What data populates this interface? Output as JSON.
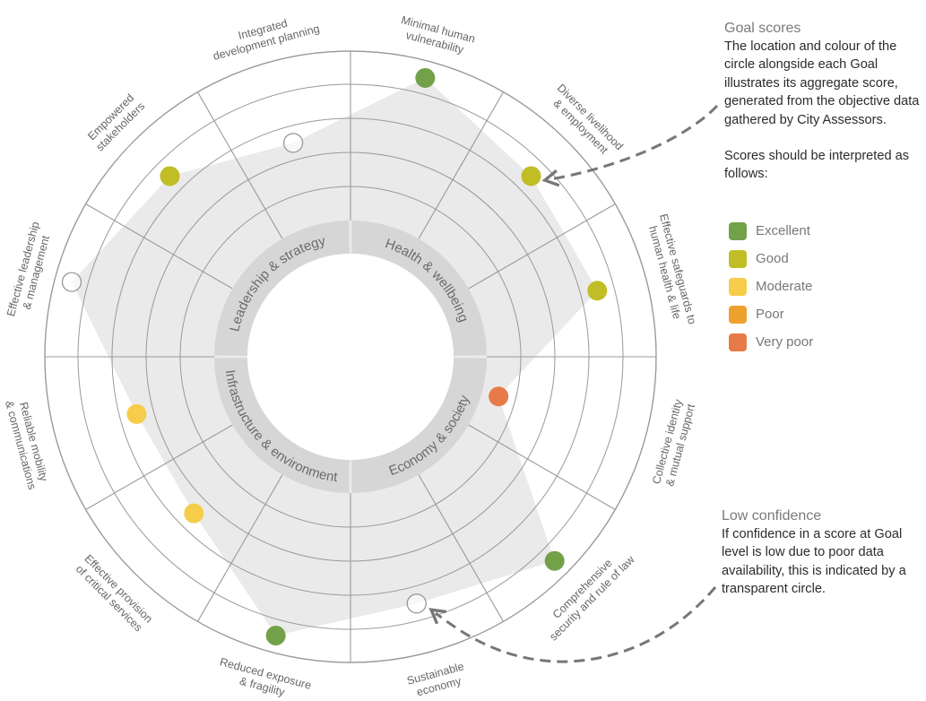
{
  "categories": [
    {
      "label": "Leadership & strategy",
      "quadrant": "top-left"
    },
    {
      "label": "Health & wellbeing",
      "quadrant": "top-right"
    },
    {
      "label": "Economy & society",
      "quadrant": "bottom-right"
    },
    {
      "label": "Infrastructure & environment",
      "quadrant": "bottom-left"
    }
  ],
  "score_levels": [
    "Very poor",
    "Poor",
    "Moderate",
    "Good",
    "Excellent"
  ],
  "goals": [
    {
      "lines": [
        "Minimal human",
        "vulnerability"
      ],
      "score": "Excellent",
      "low_confidence": false
    },
    {
      "lines": [
        "Diverse livelihood",
        "& employment"
      ],
      "score": "Good",
      "low_confidence": false
    },
    {
      "lines": [
        "Effective safeguards to",
        "human health & life"
      ],
      "score": "Good",
      "low_confidence": false
    },
    {
      "lines": [
        "Collective identity",
        "& mutual support"
      ],
      "score": "Very poor",
      "low_confidence": false
    },
    {
      "lines": [
        "Comprehensive",
        "security and rule of law"
      ],
      "score": "Excellent",
      "low_confidence": false
    },
    {
      "lines": [
        "Sustainable",
        "economy"
      ],
      "score": "Good",
      "low_confidence": true
    },
    {
      "lines": [
        "Reduced exposure",
        "& fragility"
      ],
      "score": "Excellent",
      "low_confidence": false
    },
    {
      "lines": [
        "Effective provision",
        "of critical services"
      ],
      "score": "Moderate",
      "low_confidence": false
    },
    {
      "lines": [
        "Reliable mobility",
        "& communications"
      ],
      "score": "Moderate",
      "low_confidence": false
    },
    {
      "lines": [
        "Effective leadership",
        "& management"
      ],
      "score": "Excellent",
      "low_confidence": true
    },
    {
      "lines": [
        "Empowered",
        "stakeholders"
      ],
      "score": "Good",
      "low_confidence": false
    },
    {
      "lines": [
        "Integrated",
        "development planning"
      ],
      "score": "Moderate",
      "low_confidence": true
    }
  ],
  "goal_scores_note": {
    "title": "Goal scores",
    "body": "The location and colour of the circle alongside each Goal illustrates its aggregate score, generated from the objective data gathered by City Assessors.",
    "interpret": "Scores should be interpreted as follows:"
  },
  "legend": [
    {
      "label": "Excellent",
      "color": "#73a149"
    },
    {
      "label": "Good",
      "color": "#c0bd26"
    },
    {
      "label": "Moderate",
      "color": "#f5cd4a"
    },
    {
      "label": "Poor",
      "color": "#eea22e"
    },
    {
      "label": "Very poor",
      "color": "#e77a48"
    }
  ],
  "low_confidence_note": {
    "title": "Low confidence",
    "body": "If confidence in a score at Goal level is low due to poor data availability, this is indicated by a transparent circle."
  }
}
